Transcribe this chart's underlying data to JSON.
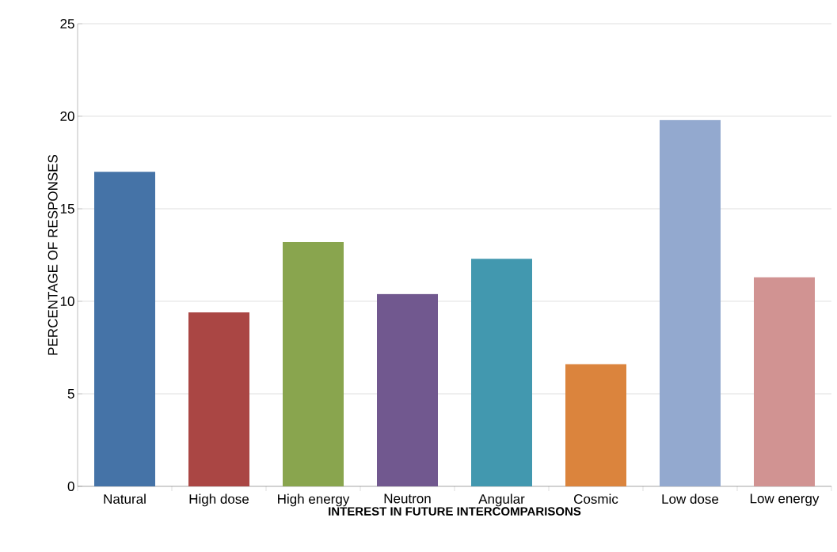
{
  "chart_data": {
    "type": "bar",
    "xlabel": "INTEREST IN FUTURE INTERCOMPARISONS",
    "ylabel": "PERCENTAGE OF RESPONSES",
    "categories": [
      "Natural",
      "High dose",
      "High energy",
      "Neutron",
      "Angular",
      "Cosmic",
      "Low dose",
      "Low energy"
    ],
    "values": [
      17.0,
      9.4,
      13.2,
      10.4,
      12.3,
      6.6,
      19.8,
      11.3
    ],
    "colors": [
      "#4573a7",
      "#aa4644",
      "#89a54e",
      "#71588f",
      "#4298af",
      "#db843d",
      "#93a9cf",
      "#d19392"
    ],
    "ylim": [
      0,
      25
    ],
    "yticks": [
      0,
      5,
      10,
      15,
      20,
      25
    ],
    "grid": "y"
  }
}
